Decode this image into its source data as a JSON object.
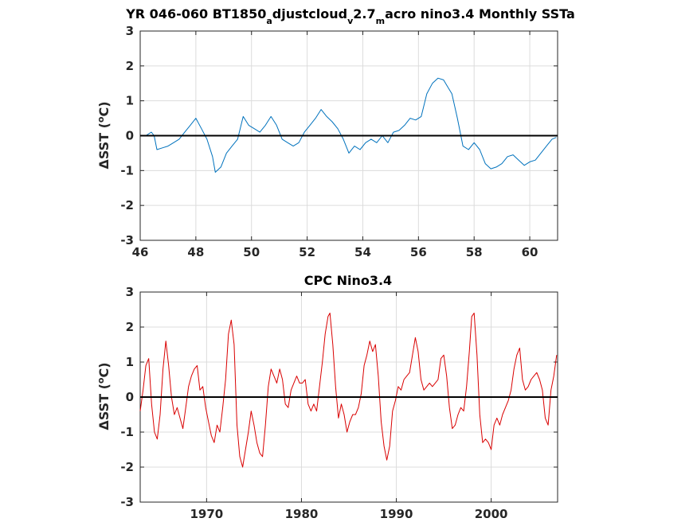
{
  "chart_data": [
    {
      "type": "line",
      "title": "YR 046-060 BT1850",
      "title_parts": {
        "t1": "YR 046-060 BT1850",
        "s1": "a",
        "t2": "djustcloud",
        "s2": "v",
        "t3": "2.7",
        "s3": "m",
        "t4": "acro nino3.4 Monthly SSTa"
      },
      "ylabel": "ΔSST (°C)",
      "ylabel_parts": {
        "delta": "Δ",
        "pre": "SST (",
        "deg": "o",
        "post": "C)"
      },
      "xlabel": "",
      "xlim": [
        46,
        61
      ],
      "ylim": [
        -3,
        3
      ],
      "xticks": [
        46,
        48,
        50,
        52,
        54,
        56,
        58,
        60
      ],
      "yticks": [
        -3,
        -2,
        -1,
        0,
        1,
        2,
        3
      ],
      "zero_line": true,
      "grid": true,
      "series": [
        {
          "color": "#0072bd",
          "x": [
            46.2,
            46.4,
            46.5,
            46.6,
            46.8,
            47.0,
            47.2,
            47.4,
            47.6,
            47.8,
            48.0,
            48.2,
            48.4,
            48.6,
            48.7,
            48.9,
            49.1,
            49.3,
            49.5,
            49.7,
            49.9,
            50.1,
            50.3,
            50.5,
            50.7,
            50.9,
            51.1,
            51.3,
            51.5,
            51.7,
            51.9,
            52.1,
            52.3,
            52.5,
            52.7,
            52.9,
            53.1,
            53.3,
            53.5,
            53.7,
            53.9,
            54.1,
            54.3,
            54.5,
            54.7,
            54.9,
            55.1,
            55.3,
            55.5,
            55.7,
            55.9,
            56.1,
            56.3,
            56.5,
            56.7,
            56.9,
            57.05,
            57.2,
            57.4,
            57.6,
            57.8,
            58.0,
            58.2,
            58.4,
            58.6,
            58.8,
            59.0,
            59.2,
            59.4,
            59.6,
            59.8,
            60.0,
            60.2,
            60.4,
            60.6,
            60.8,
            60.95
          ],
          "y": [
            0.0,
            0.1,
            0.0,
            -0.4,
            -0.35,
            -0.3,
            -0.2,
            -0.1,
            0.1,
            0.3,
            0.5,
            0.2,
            -0.1,
            -0.6,
            -1.05,
            -0.9,
            -0.5,
            -0.3,
            -0.1,
            0.55,
            0.3,
            0.2,
            0.1,
            0.3,
            0.55,
            0.3,
            -0.1,
            -0.2,
            -0.3,
            -0.2,
            0.1,
            0.3,
            0.5,
            0.75,
            0.55,
            0.4,
            0.2,
            -0.1,
            -0.5,
            -0.3,
            -0.4,
            -0.2,
            -0.1,
            -0.2,
            0.0,
            -0.2,
            0.1,
            0.15,
            0.3,
            0.5,
            0.45,
            0.55,
            1.2,
            1.5,
            1.65,
            1.6,
            1.4,
            1.2,
            0.5,
            -0.3,
            -0.4,
            -0.2,
            -0.4,
            -0.8,
            -0.95,
            -0.9,
            -0.8,
            -0.6,
            -0.55,
            -0.7,
            -0.85,
            -0.75,
            -0.7,
            -0.5,
            -0.3,
            -0.1,
            -0.05
          ]
        }
      ]
    },
    {
      "type": "line",
      "title": "CPC Nino3.4",
      "ylabel": "ΔSST (°C)",
      "ylabel_parts": {
        "delta": "Δ",
        "pre": "SST (",
        "deg": "o",
        "post": "C)"
      },
      "xlabel": "",
      "xlim": [
        1963,
        2007
      ],
      "ylim": [
        -3,
        3
      ],
      "xticks": [
        1970,
        1980,
        1990,
        2000
      ],
      "yticks": [
        -3,
        -2,
        -1,
        0,
        1,
        2,
        3
      ],
      "zero_line": true,
      "grid": true,
      "series": [
        {
          "color": "#d90000",
          "x": [
            1963.0,
            1963.3,
            1963.6,
            1963.9,
            1964.2,
            1964.5,
            1964.8,
            1965.1,
            1965.4,
            1965.7,
            1966.0,
            1966.3,
            1966.6,
            1966.9,
            1967.2,
            1967.5,
            1967.8,
            1968.1,
            1968.4,
            1968.7,
            1969.0,
            1969.3,
            1969.6,
            1969.9,
            1970.2,
            1970.5,
            1970.8,
            1971.1,
            1971.4,
            1971.7,
            1972.0,
            1972.3,
            1972.6,
            1972.9,
            1973.2,
            1973.5,
            1973.8,
            1974.1,
            1974.4,
            1974.7,
            1975.0,
            1975.3,
            1975.6,
            1975.9,
            1976.2,
            1976.5,
            1976.8,
            1977.1,
            1977.4,
            1977.7,
            1978.0,
            1978.3,
            1978.6,
            1978.9,
            1979.2,
            1979.5,
            1979.8,
            1980.1,
            1980.4,
            1980.7,
            1981.0,
            1981.3,
            1981.6,
            1981.9,
            1982.2,
            1982.5,
            1982.8,
            1983.0,
            1983.3,
            1983.6,
            1983.9,
            1984.2,
            1984.5,
            1984.8,
            1985.1,
            1985.4,
            1985.7,
            1986.0,
            1986.3,
            1986.6,
            1986.9,
            1987.2,
            1987.5,
            1987.8,
            1988.1,
            1988.4,
            1988.7,
            1989.0,
            1989.3,
            1989.6,
            1989.9,
            1990.2,
            1990.5,
            1990.8,
            1991.1,
            1991.4,
            1991.7,
            1992.0,
            1992.3,
            1992.6,
            1992.9,
            1993.2,
            1993.5,
            1993.8,
            1994.1,
            1994.4,
            1994.7,
            1995.0,
            1995.3,
            1995.6,
            1995.9,
            1996.2,
            1996.5,
            1996.8,
            1997.1,
            1997.4,
            1997.7,
            1997.95,
            1998.2,
            1998.5,
            1998.8,
            1999.1,
            1999.4,
            1999.7,
            2000.0,
            2000.3,
            2000.6,
            2000.9,
            2001.2,
            2001.5,
            2001.8,
            2002.1,
            2002.4,
            2002.7,
            2003.0,
            2003.3,
            2003.6,
            2003.9,
            2004.2,
            2004.5,
            2004.8,
            2005.1,
            2005.4,
            2005.7,
            2006.0,
            2006.3,
            2006.6,
            2006.9
          ],
          "y": [
            -0.4,
            0.2,
            0.9,
            1.1,
            -0.2,
            -1.0,
            -1.2,
            -0.5,
            0.8,
            1.6,
            0.9,
            0.0,
            -0.5,
            -0.3,
            -0.6,
            -0.9,
            -0.3,
            0.3,
            0.6,
            0.8,
            0.9,
            0.2,
            0.3,
            -0.3,
            -0.7,
            -1.1,
            -1.3,
            -0.8,
            -1.0,
            -0.3,
            0.5,
            1.8,
            2.2,
            1.5,
            -0.8,
            -1.7,
            -2.0,
            -1.5,
            -1.0,
            -0.4,
            -0.8,
            -1.3,
            -1.6,
            -1.7,
            -0.8,
            0.3,
            0.8,
            0.6,
            0.4,
            0.8,
            0.5,
            -0.2,
            -0.3,
            0.2,
            0.4,
            0.6,
            0.4,
            0.4,
            0.5,
            -0.2,
            -0.4,
            -0.2,
            -0.4,
            0.3,
            1.0,
            1.8,
            2.3,
            2.4,
            1.5,
            0.3,
            -0.6,
            -0.2,
            -0.5,
            -1.0,
            -0.7,
            -0.5,
            -0.5,
            -0.3,
            0.1,
            0.9,
            1.2,
            1.6,
            1.3,
            1.5,
            0.6,
            -0.7,
            -1.4,
            -1.8,
            -1.4,
            -0.4,
            -0.1,
            0.3,
            0.2,
            0.5,
            0.6,
            0.7,
            1.2,
            1.7,
            1.3,
            0.5,
            0.2,
            0.3,
            0.4,
            0.3,
            0.4,
            0.5,
            1.1,
            1.2,
            0.6,
            -0.3,
            -0.9,
            -0.8,
            -0.5,
            -0.3,
            -0.4,
            0.3,
            1.3,
            2.3,
            2.4,
            1.2,
            -0.5,
            -1.3,
            -1.2,
            -1.3,
            -1.5,
            -0.8,
            -0.6,
            -0.8,
            -0.5,
            -0.3,
            -0.1,
            0.2,
            0.8,
            1.2,
            1.4,
            0.5,
            0.2,
            0.3,
            0.5,
            0.6,
            0.7,
            0.5,
            0.2,
            -0.6,
            -0.8,
            0.2,
            0.6,
            1.2
          ]
        }
      ]
    }
  ]
}
